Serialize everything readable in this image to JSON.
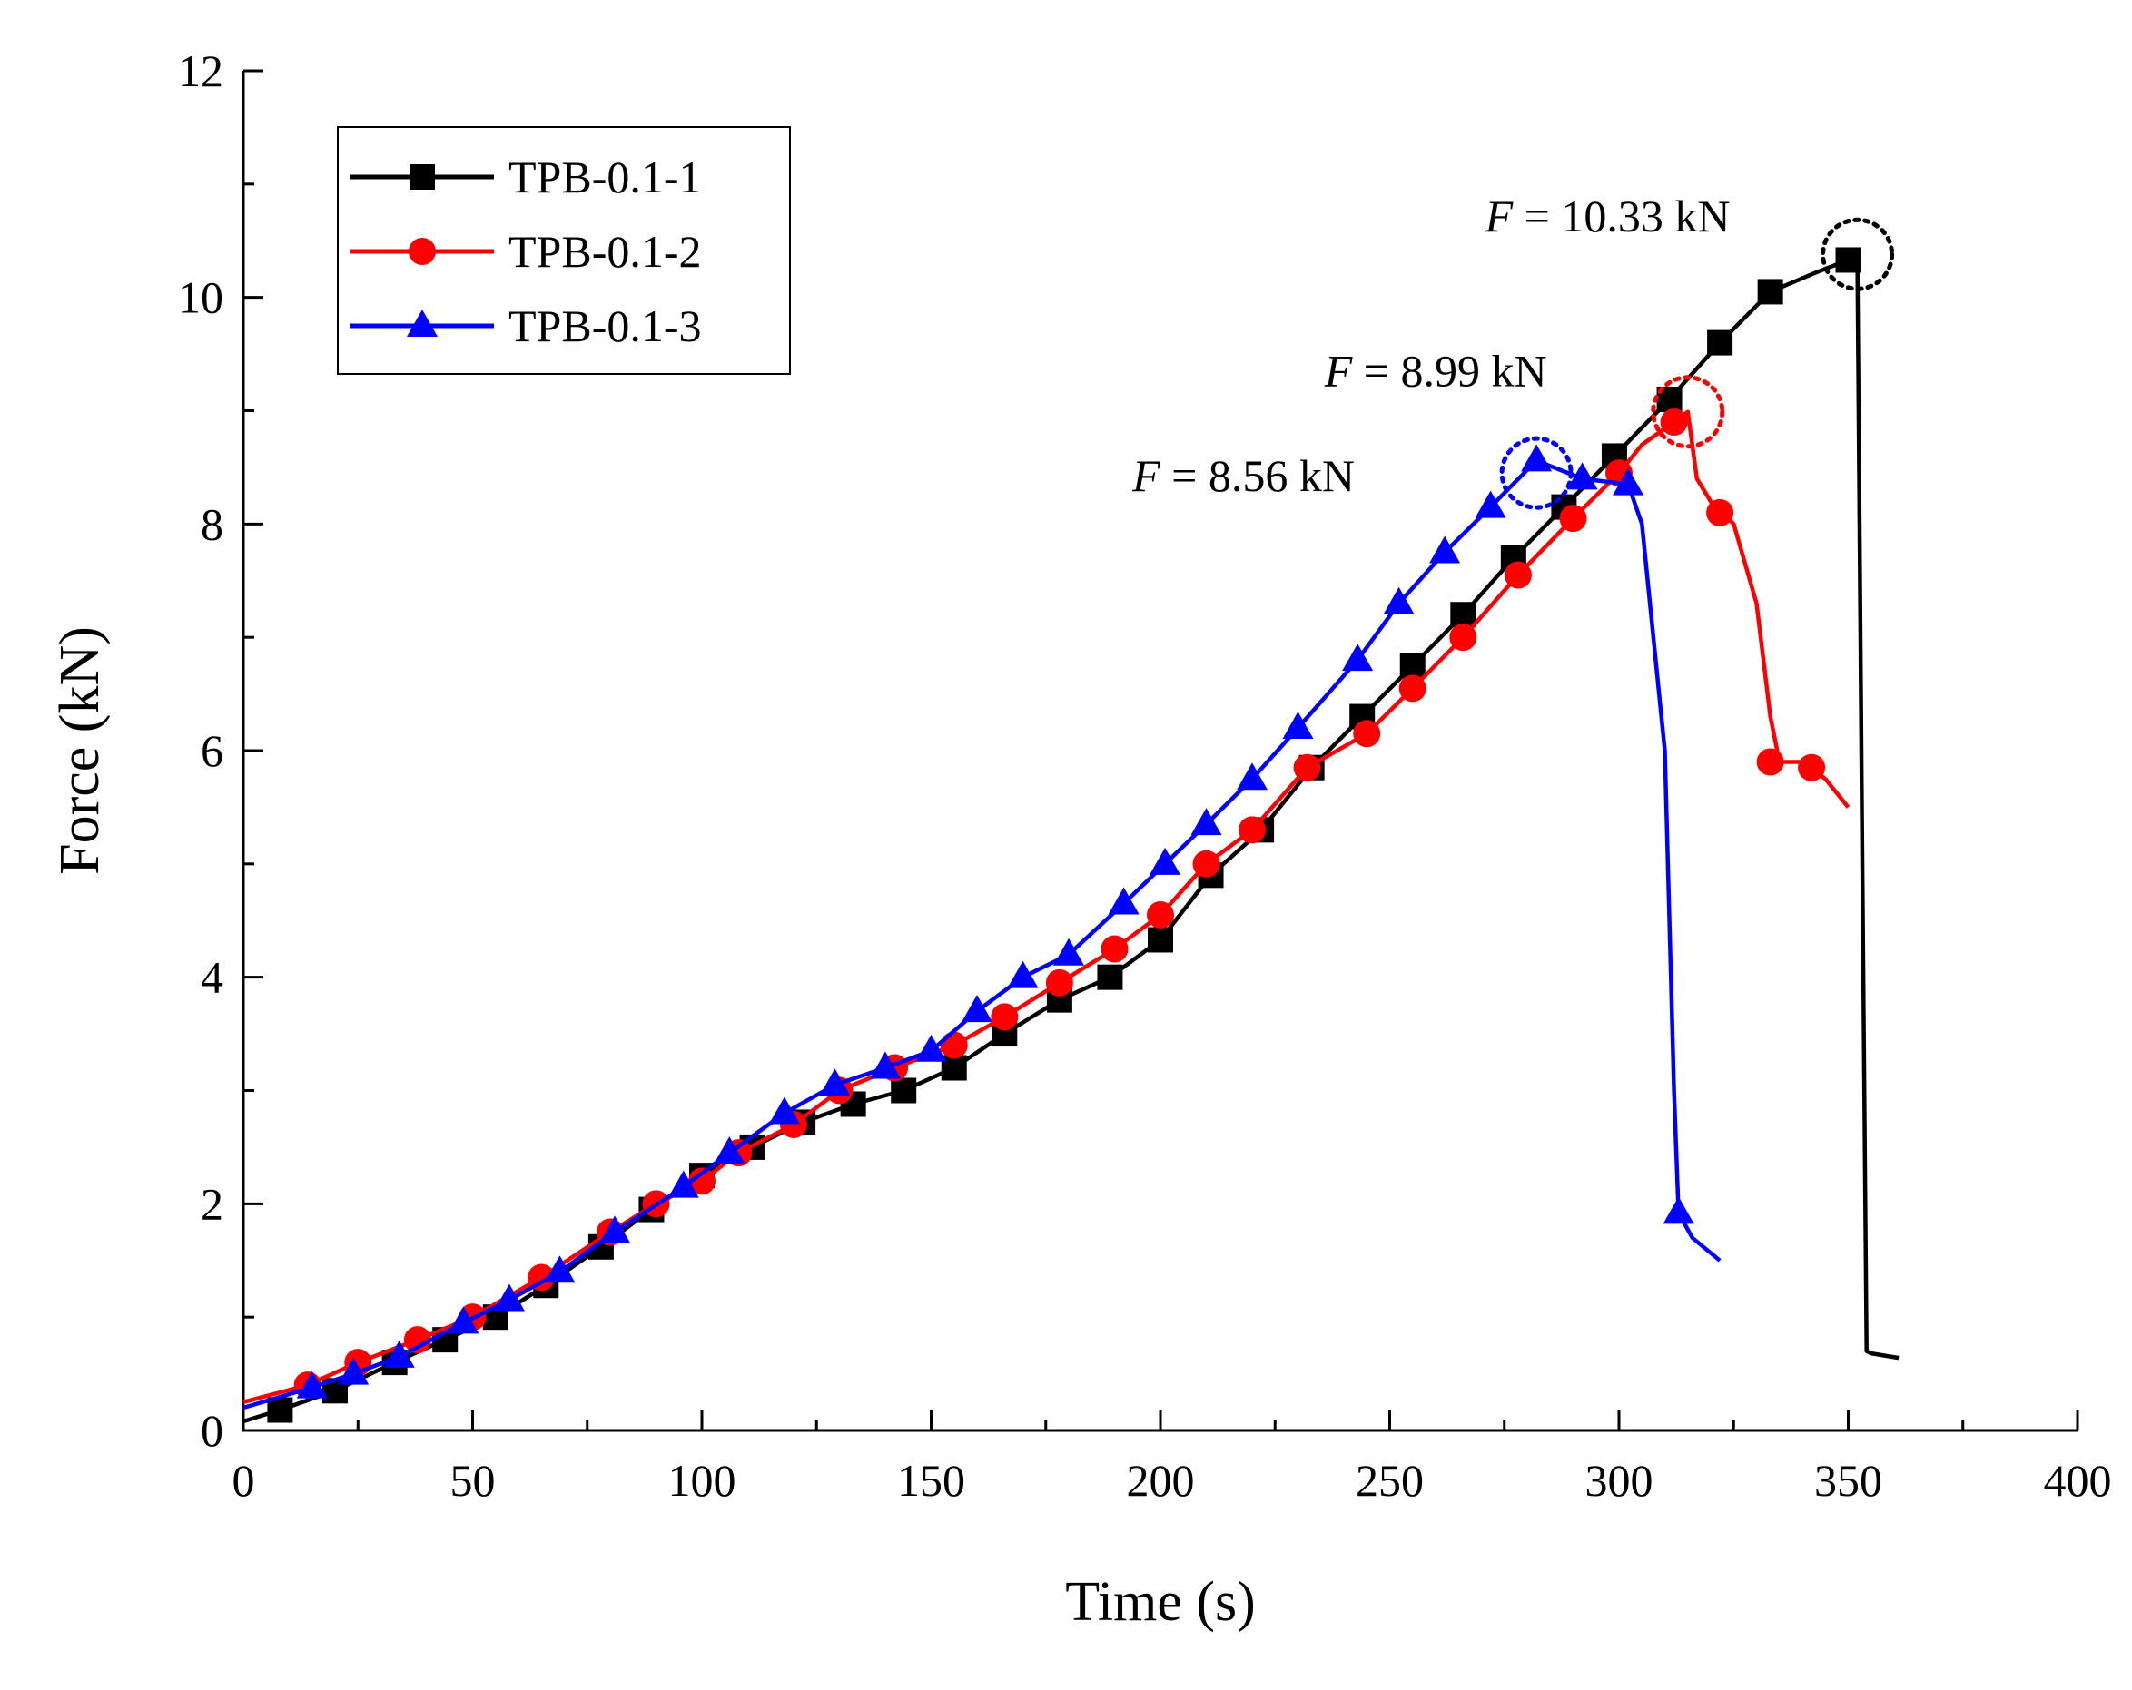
{
  "chart_data": {
    "type": "line",
    "title": "",
    "xlabel": "Time (s)",
    "ylabel": "Force (kN)",
    "xlim": [
      0,
      400
    ],
    "ylim": [
      0,
      12
    ],
    "xticks": [
      0,
      50,
      100,
      150,
      200,
      250,
      300,
      350,
      400
    ],
    "yticks": [
      0,
      2,
      4,
      6,
      8,
      10,
      12
    ],
    "grid": false,
    "legend_position": "top-left",
    "series": [
      {
        "name": "TPB-0.1-1",
        "color": "#000000",
        "marker": "square",
        "x": [
          0,
          8,
          20,
          33,
          44,
          55,
          66,
          78,
          89,
          100,
          111,
          122,
          133,
          144,
          155,
          166,
          178,
          189,
          200,
          211,
          222,
          233,
          244,
          255,
          266,
          277,
          288,
          299,
          311,
          322,
          333,
          343,
          350,
          352,
          353,
          354,
          355,
          358,
          361
        ],
        "y": [
          0.08,
          0.18,
          0.35,
          0.6,
          0.8,
          1.0,
          1.28,
          1.62,
          1.95,
          2.25,
          2.5,
          2.72,
          2.88,
          3.0,
          3.2,
          3.5,
          3.8,
          4.0,
          4.33,
          4.9,
          5.3,
          5.85,
          6.3,
          6.75,
          7.2,
          7.7,
          8.15,
          8.6,
          9.1,
          9.6,
          10.05,
          10.22,
          10.33,
          10.3,
          5.4,
          0.7,
          0.68,
          0.66,
          0.64
        ],
        "marker_x": [
          8,
          20,
          33,
          44,
          55,
          66,
          78,
          89,
          100,
          111,
          122,
          133,
          144,
          155,
          166,
          178,
          189,
          200,
          211,
          222,
          233,
          244,
          255,
          266,
          277,
          288,
          299,
          311,
          322,
          333,
          350
        ],
        "marker_y": [
          0.18,
          0.35,
          0.6,
          0.8,
          1.0,
          1.28,
          1.62,
          1.95,
          2.25,
          2.5,
          2.72,
          2.88,
          3.0,
          3.2,
          3.5,
          3.8,
          4.0,
          4.33,
          4.9,
          5.3,
          5.85,
          6.3,
          6.75,
          7.2,
          7.7,
          8.15,
          8.6,
          9.1,
          9.6,
          10.05,
          10.33
        ]
      },
      {
        "name": "TPB-0.1-2",
        "color": "#ff0000",
        "marker": "circle",
        "x": [
          0,
          14,
          25,
          38,
          50,
          65,
          80,
          90,
          100,
          108,
          120,
          130,
          142,
          155,
          166,
          178,
          190,
          200,
          210,
          220,
          232,
          245,
          255,
          266,
          278,
          290,
          300,
          305,
          312,
          315,
          317,
          320,
          325,
          330,
          333,
          335,
          340,
          345,
          350
        ],
        "y": [
          0.25,
          0.4,
          0.6,
          0.8,
          1.0,
          1.35,
          1.75,
          2.0,
          2.2,
          2.45,
          2.7,
          3.0,
          3.2,
          3.4,
          3.65,
          3.95,
          4.25,
          4.55,
          5.0,
          5.3,
          5.85,
          6.15,
          6.55,
          7.0,
          7.55,
          8.05,
          8.45,
          8.7,
          8.9,
          8.99,
          8.4,
          8.2,
          8.0,
          7.3,
          6.3,
          5.9,
          5.9,
          5.75,
          5.5
        ],
        "marker_x": [
          14,
          25,
          38,
          50,
          65,
          80,
          90,
          100,
          108,
          120,
          130,
          142,
          155,
          166,
          178,
          190,
          200,
          210,
          220,
          232,
          245,
          255,
          266,
          278,
          290,
          300,
          312,
          322,
          333,
          342
        ],
        "marker_y": [
          0.4,
          0.6,
          0.8,
          1.0,
          1.35,
          1.75,
          2.0,
          2.2,
          2.45,
          2.7,
          3.0,
          3.2,
          3.4,
          3.65,
          3.95,
          4.25,
          4.55,
          5.0,
          5.3,
          5.85,
          6.15,
          6.55,
          7.0,
          7.55,
          8.05,
          8.45,
          8.9,
          8.1,
          5.9,
          5.85
        ]
      },
      {
        "name": "TPB-0.1-3",
        "color": "#0000ff",
        "marker": "triangle",
        "x": [
          0,
          15,
          24,
          34,
          48,
          58,
          69,
          81,
          96,
          106,
          118,
          129,
          140,
          150,
          160,
          170,
          180,
          192,
          201,
          210,
          220,
          230,
          243,
          252,
          262,
          272,
          282,
          292,
          302,
          305,
          310,
          312,
          313,
          316,
          322
        ],
        "y": [
          0.2,
          0.38,
          0.5,
          0.65,
          0.95,
          1.15,
          1.4,
          1.75,
          2.15,
          2.45,
          2.8,
          3.05,
          3.2,
          3.35,
          3.7,
          4.0,
          4.2,
          4.65,
          5.0,
          5.35,
          5.75,
          6.2,
          6.8,
          7.3,
          7.75,
          8.15,
          8.56,
          8.4,
          8.35,
          8.0,
          6.0,
          3.0,
          1.92,
          1.7,
          1.5
        ],
        "marker_x": [
          15,
          24,
          34,
          48,
          58,
          69,
          81,
          96,
          106,
          118,
          129,
          140,
          150,
          160,
          170,
          180,
          192,
          201,
          210,
          220,
          230,
          243,
          252,
          262,
          272,
          282,
          292,
          302,
          313
        ],
        "marker_y": [
          0.38,
          0.5,
          0.65,
          0.95,
          1.15,
          1.4,
          1.75,
          2.15,
          2.45,
          2.8,
          3.05,
          3.2,
          3.35,
          3.7,
          4.0,
          4.2,
          4.65,
          5.0,
          5.35,
          5.75,
          6.2,
          6.8,
          7.3,
          7.75,
          8.15,
          8.56,
          8.4,
          8.35,
          1.92
        ]
      }
    ],
    "annotations": [
      {
        "var": "F",
        "text": " = 10.33 kN",
        "x": 352,
        "y": 10.38,
        "color": "#000000"
      },
      {
        "var": "F",
        "text": " = 8.99 kN",
        "x": 315,
        "y": 8.99,
        "color": "#ff0000"
      },
      {
        "var": "F",
        "text": " = 8.56 kN",
        "x": 282,
        "y": 8.45,
        "color": "#0000ff"
      }
    ]
  }
}
